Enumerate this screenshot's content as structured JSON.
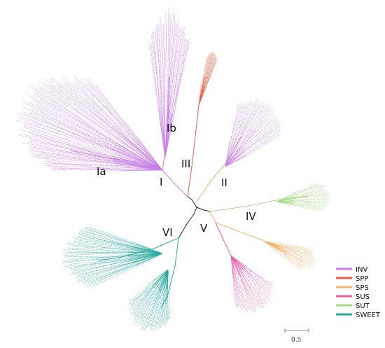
{
  "figure": {
    "clades": [
      {
        "id": "Ia",
        "label": "Ia",
        "family": "INV"
      },
      {
        "id": "Ib",
        "label": "Ib",
        "family": "INV"
      },
      {
        "id": "I",
        "label": "I",
        "family": "INV"
      },
      {
        "id": "II",
        "label": "II",
        "family": "INV"
      },
      {
        "id": "III",
        "label": "III",
        "family": "SPP"
      },
      {
        "id": "IV",
        "label": "IV",
        "family": "SUT"
      },
      {
        "id": "V",
        "label": "V",
        "family": "SPS"
      },
      {
        "id": "VI",
        "label": "VI",
        "family": "SWEET"
      }
    ],
    "legend": [
      {
        "label": "INV",
        "color": "#c77fe6"
      },
      {
        "label": "SPP",
        "color": "#e8604a"
      },
      {
        "label": "SPS",
        "color": "#f4b26a"
      },
      {
        "label": "SUS",
        "color": "#e860a8"
      },
      {
        "label": "SUT",
        "color": "#a8d98a"
      },
      {
        "label": "SWEET",
        "color": "#2aa8a0"
      }
    ],
    "scale_bar": {
      "label": "0.5"
    }
  }
}
